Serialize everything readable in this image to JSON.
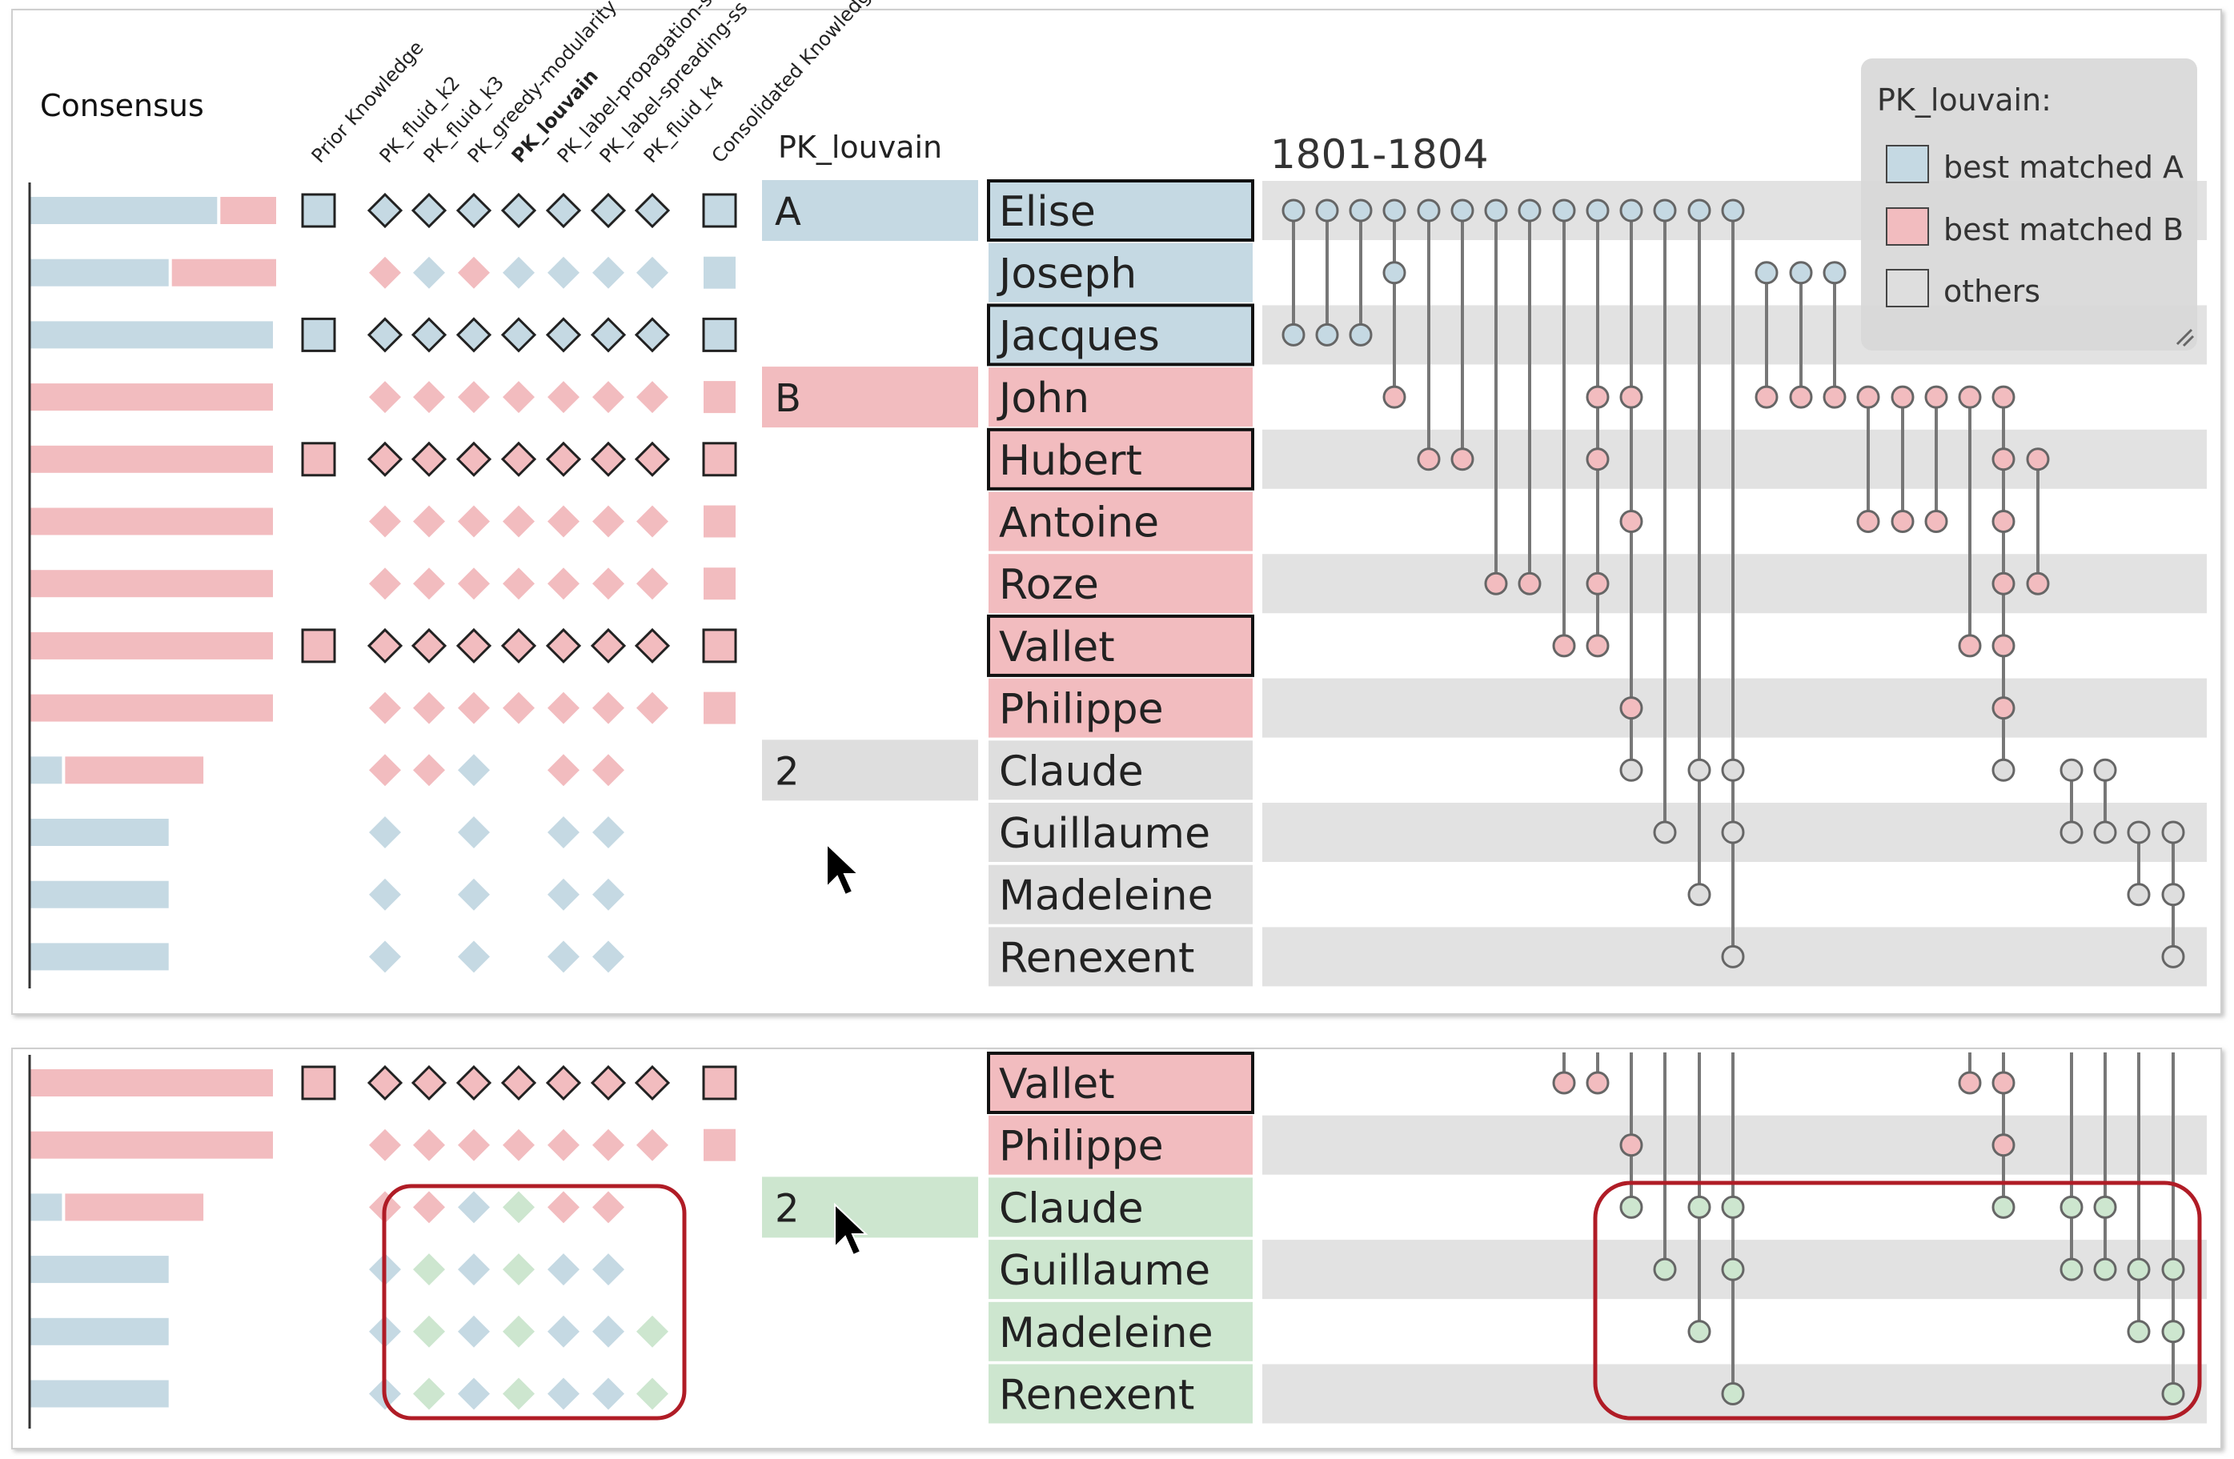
{
  "labels": {
    "consensus": "Consensus",
    "pk_column_title": "PK_louvain",
    "period": "1801-1804"
  },
  "columns": [
    "Prior Knowledge",
    "PK_fluid_k2",
    "PK_fluid_k3",
    "PK_greedy-modularity",
    "PK_louvain",
    "PK_label-propagation-s",
    "PK_label-spreading-ss",
    "PK_fluid_k4",
    "Consolidated Knowledg"
  ],
  "legend": {
    "title": "PK_louvain:",
    "items": [
      {
        "label": "best matched A",
        "color": "blue"
      },
      {
        "label": "best matched B",
        "color": "pink"
      },
      {
        "label": "others",
        "color": "grey"
      }
    ]
  },
  "colors": {
    "blue": "#c5d9e3",
    "pink": "#f2bcbf",
    "grey": "#dedede",
    "green": "#cde6cf",
    "highlight": "#b01c26"
  },
  "top_panel": {
    "rows": [
      {
        "name": "Elise",
        "color": "blue",
        "boxed": true,
        "group_label": "A",
        "pk": true,
        "cons": [
          0.77,
          0.23
        ],
        "diamonds": "bbbbbbbp",
        "outlined": true
      },
      {
        "name": "Joseph",
        "color": "blue",
        "boxed": false,
        "group_label": "",
        "pk": false,
        "cons": [
          0.57,
          0.43
        ],
        "diamonds": "pbpbbbbp",
        "outlined": false
      },
      {
        "name": "Jacques",
        "color": "blue",
        "boxed": true,
        "group_label": "",
        "pk": true,
        "cons": [
          1.0,
          0
        ],
        "diamonds": "bbbbbbbb",
        "outlined": true
      },
      {
        "name": "John",
        "color": "pink",
        "boxed": false,
        "group_label": "B",
        "pk": false,
        "cons": [
          0,
          1.0
        ],
        "diamonds": "pppppppp",
        "outlined": false
      },
      {
        "name": "Hubert",
        "color": "pink",
        "boxed": true,
        "group_label": "",
        "pk": true,
        "cons": [
          0,
          1.0
        ],
        "diamonds": "pppppppp",
        "outlined": true
      },
      {
        "name": "Antoine",
        "color": "pink",
        "boxed": false,
        "group_label": "",
        "pk": false,
        "cons": [
          0,
          1.0
        ],
        "diamonds": "pppppppp",
        "outlined": false
      },
      {
        "name": "Roze",
        "color": "pink",
        "boxed": false,
        "group_label": "",
        "pk": false,
        "cons": [
          0,
          1.0
        ],
        "diamonds": "pppppppp",
        "outlined": false
      },
      {
        "name": "Vallet",
        "color": "pink",
        "boxed": true,
        "group_label": "",
        "pk": true,
        "cons": [
          0,
          1.0
        ],
        "diamonds": "pppppppp",
        "outlined": true
      },
      {
        "name": "Philippe",
        "color": "pink",
        "boxed": false,
        "group_label": "",
        "pk": false,
        "cons": [
          0,
          1.0
        ],
        "diamonds": "pppppppp",
        "outlined": false
      },
      {
        "name": "Claude",
        "color": "grey",
        "boxed": false,
        "group_label": "2",
        "pk": false,
        "cons": [
          0.13,
          0.57
        ],
        "diamonds": "ppb.pp..",
        "outlined": false
      },
      {
        "name": "Guillaume",
        "color": "grey",
        "boxed": false,
        "group_label": "",
        "pk": false,
        "cons": [
          0.57,
          0
        ],
        "diamonds": "b.b.bb..",
        "outlined": false
      },
      {
        "name": "Madeleine",
        "color": "grey",
        "boxed": false,
        "group_label": "",
        "pk": false,
        "cons": [
          0.57,
          0
        ],
        "diamonds": "b.b.bb..",
        "outlined": false
      },
      {
        "name": "Renexent",
        "color": "grey",
        "boxed": false,
        "group_label": "",
        "pk": false,
        "cons": [
          0.57,
          0
        ],
        "diamonds": "b.b.bb..",
        "outlined": false
      }
    ]
  },
  "bottom_panel": {
    "rows": [
      {
        "name": "Vallet",
        "color": "pink",
        "boxed": true,
        "group_label": "",
        "pk": true,
        "cons": [
          0,
          1.0
        ],
        "diamonds": "pppppppp",
        "outlined": true
      },
      {
        "name": "Philippe",
        "color": "pink",
        "boxed": false,
        "group_label": "",
        "pk": false,
        "cons": [
          0,
          1.0
        ],
        "diamonds": "pppppppp",
        "outlined": false
      },
      {
        "name": "Claude",
        "color": "green",
        "boxed": false,
        "group_label": "2",
        "pk": false,
        "cons": [
          0.13,
          0.57
        ],
        "diamonds": "ppbgpp..",
        "outlined": false
      },
      {
        "name": "Guillaume",
        "color": "green",
        "boxed": false,
        "group_label": "",
        "pk": false,
        "cons": [
          0.57,
          0
        ],
        "diamonds": "bgbgbb..",
        "outlined": false
      },
      {
        "name": "Madeleine",
        "color": "green",
        "boxed": false,
        "group_label": "",
        "pk": false,
        "cons": [
          0.57,
          0
        ],
        "diamonds": "bgbgbbg.",
        "outlined": false
      },
      {
        "name": "Renexent",
        "color": "green",
        "boxed": false,
        "group_label": "",
        "pk": false,
        "cons": [
          0.57,
          0
        ],
        "diamonds": "bgbgbbg.",
        "outlined": false
      }
    ]
  }
}
